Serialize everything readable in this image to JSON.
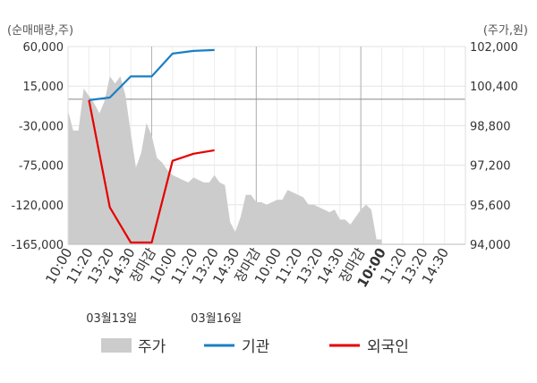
{
  "chart_data": {
    "type": "line",
    "left_axis_unit": "(순매매량,주)",
    "right_axis_unit": "(주가,원)",
    "left_ylim": [
      -165000,
      60000
    ],
    "right_ylim": [
      94000,
      102000
    ],
    "left_ticks": [
      "60,000",
      "15,000",
      "-30,000",
      "-75,000",
      "-120,000",
      "-165,000"
    ],
    "right_ticks": [
      "102,000",
      "100,400",
      "98,800",
      "97,200",
      "95,600",
      "94,000"
    ],
    "x_tick_labels": [
      "10:00",
      "11:20",
      "13:20",
      "14:30",
      "장마감",
      "10:00",
      "11:20",
      "13:20",
      "14:30",
      "장마감",
      "10:00",
      "11:20",
      "13:20",
      "14:30",
      "장마감",
      "10:00",
      "11:20",
      "13:20",
      "14:30"
    ],
    "x_tick_highlight": [
      4,
      9,
      14
    ],
    "x_tick_bold": [
      15
    ],
    "date_labels": [
      {
        "text": "03월13일",
        "at": 2
      },
      {
        "text": "03월16일",
        "at": 7
      }
    ],
    "grid": true,
    "legend_position": "bottom",
    "series": [
      {
        "name": "주가",
        "kind": "area",
        "axis": "right",
        "color": "#cccccc",
        "x": [
          0,
          0.25,
          0.5,
          0.75,
          1,
          1.25,
          1.5,
          1.75,
          2,
          2.25,
          2.5,
          2.75,
          3,
          3.25,
          3.5,
          3.75,
          4,
          4.25,
          4.5,
          4.75,
          5,
          5.25,
          5.5,
          5.75,
          6,
          6.25,
          6.5,
          6.75,
          7,
          7.25,
          7.5,
          7.75,
          8,
          8.25,
          8.5,
          8.75,
          9,
          9.25,
          9.5,
          9.75,
          10,
          10.25,
          10.5,
          10.75,
          11,
          11.25,
          11.5,
          11.75,
          12,
          12.25,
          12.5,
          12.75,
          13,
          13.25,
          13.5,
          13.75,
          14,
          14.25,
          14.5,
          14.75,
          15
        ],
        "values": [
          99400,
          98600,
          98600,
          100300,
          100000,
          99700,
          99300,
          99800,
          100800,
          100500,
          100800,
          100000,
          98500,
          97100,
          97700,
          98900,
          98400,
          97500,
          97300,
          97000,
          96800,
          96700,
          96600,
          96500,
          96700,
          96600,
          96500,
          96500,
          96800,
          96500,
          96400,
          94900,
          94500,
          95100,
          96000,
          96000,
          95700,
          95700,
          95600,
          95700,
          95800,
          95800,
          96200,
          96100,
          96000,
          95900,
          95600,
          95600,
          95500,
          95400,
          95300,
          95400,
          95000,
          95000,
          94800,
          95100,
          95400,
          95600,
          95400,
          94200,
          94200
        ]
      },
      {
        "name": "기관",
        "kind": "line",
        "axis": "left",
        "color": "#1a7fc4",
        "x": [
          1,
          2,
          3,
          4,
          5,
          6,
          7
        ],
        "values": [
          -1000,
          2000,
          26000,
          26000,
          52000,
          55000,
          56000
        ]
      },
      {
        "name": "외국인",
        "kind": "line",
        "axis": "left",
        "color": "#e60000",
        "x": [
          1,
          2,
          3,
          4,
          5,
          6,
          7
        ],
        "values": [
          -1000,
          -123000,
          -163000,
          -163000,
          -70000,
          -62000,
          -58000
        ]
      }
    ]
  }
}
